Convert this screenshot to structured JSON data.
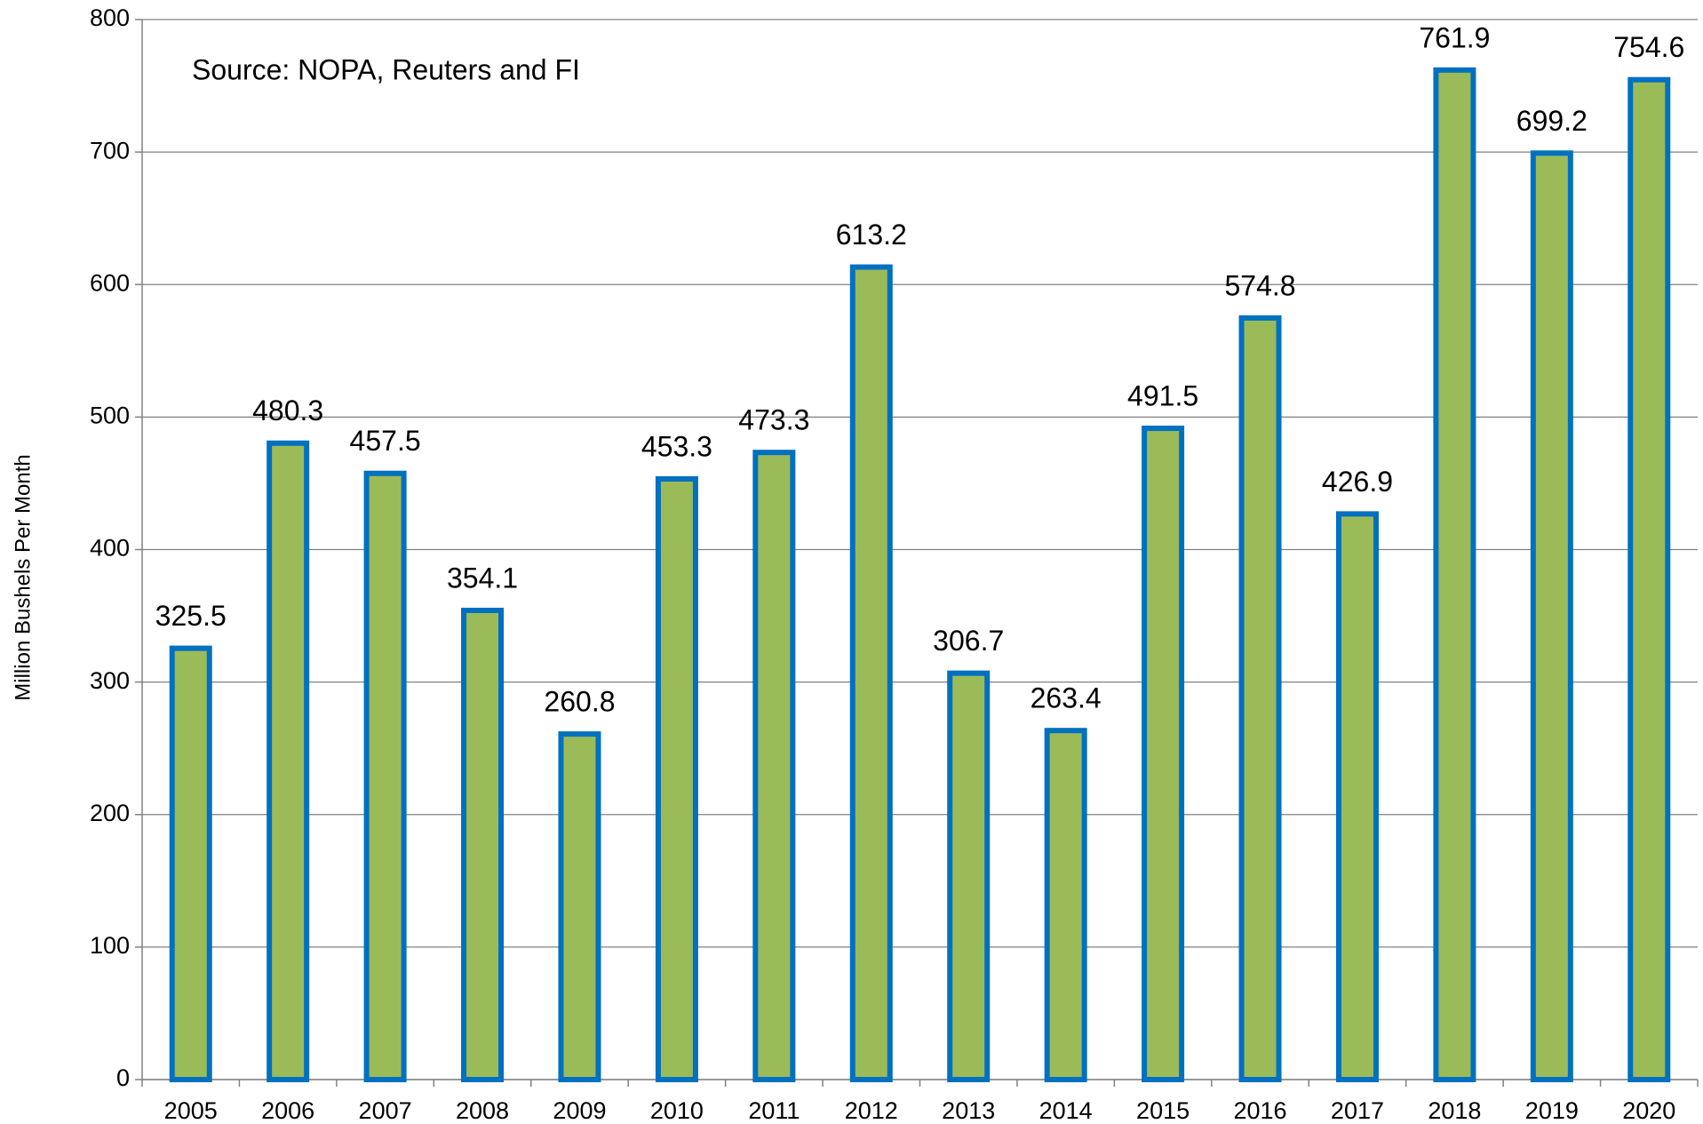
{
  "chart_data": {
    "type": "bar",
    "annotation": "Source: NOPA, Reuters and FI",
    "y_label": "Million Bushels Per Month",
    "categories": [
      "2005",
      "2006",
      "2007",
      "2008",
      "2009",
      "2010",
      "2011",
      "2012",
      "2013",
      "2014",
      "2015",
      "2016",
      "2017",
      "2018",
      "2019",
      "2020"
    ],
    "values": [
      325.5,
      480.3,
      457.5,
      354.1,
      260.8,
      453.3,
      473.3,
      613.2,
      306.7,
      263.4,
      491.5,
      574.8,
      426.9,
      761.9,
      699.2,
      754.6
    ],
    "color": "#9bbb59",
    "edge_color": "#0070c0",
    "ylim": [
      0,
      800
    ],
    "yticks": [
      0,
      100,
      200,
      300,
      400,
      500,
      600,
      700,
      800
    ],
    "grid": true
  }
}
